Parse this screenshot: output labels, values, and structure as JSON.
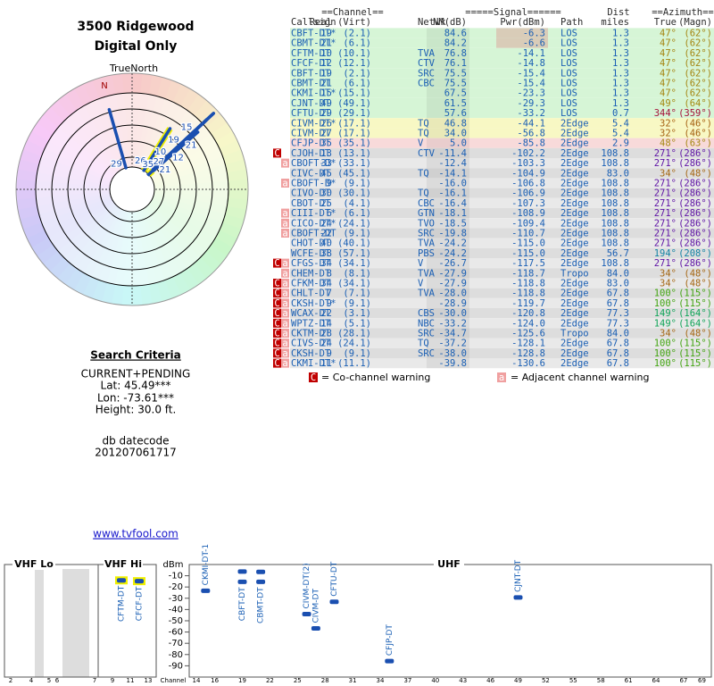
{
  "header": {
    "title": "3500 Ridgewood",
    "subtitle": "Digital Only"
  },
  "polar": {
    "north_label": "TrueNorth",
    "n": "N"
  },
  "criteria": {
    "title": "Search Criteria",
    "mode": "CURRENT+PENDING",
    "lat": "Lat: 45.49***",
    "lon": "Lon: -73.61***",
    "height": "Height: 30.0 ft.",
    "db_label": "db datecode",
    "db_value": "201207061717",
    "link": "www.tvfool.com"
  },
  "table": {
    "groups": {
      "channel": "==Channel==",
      "signal": "=====Signal======",
      "dist": "Dist",
      "azimuth": "==Azimuth=="
    },
    "columns": {
      "call": "Callsign",
      "real": "Real",
      "virt": "(Virt)",
      "net": "Netwk",
      "nm": "NM(dB)",
      "pwr": "Pwr(dBm)",
      "path": "Path",
      "miles": "miles",
      "az": "True",
      "magn": "(Magn)"
    },
    "rows": [
      {
        "call": "CBFT-DT*",
        "real": "19",
        "virt": "(2.1)",
        "nm": "84.6",
        "pwr": "-6.3",
        "path": "LOS",
        "miles": "1.3",
        "az": "47°",
        "magn": "(62°)"
      },
      {
        "call": "CBMT-DT*",
        "real": "21",
        "virt": "(6.1)",
        "nm": "84.2",
        "pwr": "-6.6",
        "path": "LOS",
        "miles": "1.3",
        "az": "47°",
        "magn": "(62°)"
      },
      {
        "call": "CFTM-DT",
        "real": "10",
        "virt": "(10.1)",
        "net": "TVA",
        "nm": "76.8",
        "pwr": "-14.1",
        "path": "LOS",
        "miles": "1.3",
        "az": "47°",
        "magn": "(62°)"
      },
      {
        "call": "CFCF-DT",
        "real": "12",
        "virt": "(12.1)",
        "net": "CTV",
        "nm": "76.1",
        "pwr": "-14.8",
        "path": "LOS",
        "miles": "1.3",
        "az": "47°",
        "magn": "(62°)"
      },
      {
        "call": "CBFT-DT",
        "real": "19",
        "virt": "(2.1)",
        "net": "SRC",
        "nm": "75.5",
        "pwr": "-15.4",
        "path": "LOS",
        "miles": "1.3",
        "az": "47°",
        "magn": "(62°)"
      },
      {
        "call": "CBMT-DT",
        "real": "21",
        "virt": "(6.1)",
        "net": "CBC",
        "nm": "75.5",
        "pwr": "-15.4",
        "path": "LOS",
        "miles": "1.3",
        "az": "47°",
        "magn": "(62°)"
      },
      {
        "call": "CKMI-DT*",
        "real": "15",
        "virt": "(15.1)",
        "nm": "67.5",
        "pwr": "-23.3",
        "path": "LOS",
        "miles": "1.3",
        "az": "47°",
        "magn": "(62°)"
      },
      {
        "call": "CJNT-DT",
        "real": "49",
        "virt": "(49.1)",
        "nm": "61.5",
        "pwr": "-29.3",
        "path": "LOS",
        "miles": "1.3",
        "az": "49°",
        "magn": "(64°)"
      },
      {
        "call": "CFTU-DT",
        "real": "29",
        "virt": "(29.1)",
        "nm": "57.6",
        "pwr": "-33.2",
        "path": "LOS",
        "miles": "0.7",
        "az": "344°",
        "magn": "(359°)"
      },
      {
        "call": "CIVM-DT*",
        "real": "26",
        "virt": "(17.1)",
        "net": "TQ",
        "nm": "46.8",
        "pwr": "-44.1",
        "path": "2Edge",
        "miles": "5.4",
        "az": "32°",
        "magn": "(46°)"
      },
      {
        "call": "CIVM-DT",
        "real": "27",
        "virt": "(17.1)",
        "net": "TQ",
        "nm": "34.0",
        "pwr": "-56.8",
        "path": "2Edge",
        "miles": "5.4",
        "az": "32°",
        "magn": "(46°)"
      },
      {
        "call": "CFJP-DT",
        "real": "35",
        "virt": "(35.1)",
        "net": "V",
        "nm": "5.0",
        "pwr": "-85.8",
        "path": "2Edge",
        "miles": "2.9",
        "az": "48°",
        "magn": "(63°)"
      },
      {
        "call": "CJOH-DT",
        "real": "13",
        "virt": "(13.1)",
        "net": "CTV",
        "nm": "-11.4",
        "pwr": "-102.2",
        "path": "2Edge",
        "miles": "108.8",
        "az": "271°",
        "magn": "(286°)",
        "flags": [
          "C"
        ]
      },
      {
        "call": "CBOFT-D*",
        "real": "33",
        "virt": "(33.1)",
        "nm": "-12.4",
        "pwr": "-103.3",
        "path": "2Edge",
        "miles": "108.8",
        "az": "271°",
        "magn": "(286°)",
        "flags": [
          "a"
        ]
      },
      {
        "call": "CIVC-DT",
        "real": "45",
        "virt": "(45.1)",
        "net": "TQ",
        "nm": "-14.1",
        "pwr": "-104.9",
        "path": "2Edge",
        "miles": "83.0",
        "az": "34°",
        "magn": "(48°)"
      },
      {
        "call": "CBOFT-D*",
        "real": "9",
        "virt": "(9.1)",
        "nm": "-16.0",
        "pwr": "-106.8",
        "path": "2Edge",
        "miles": "108.8",
        "az": "271°",
        "magn": "(286°)",
        "flags": [
          "a"
        ]
      },
      {
        "call": "CIVO-DT",
        "real": "30",
        "virt": "(30.1)",
        "net": "TQ",
        "nm": "-16.1",
        "pwr": "-106.9",
        "path": "2Edge",
        "miles": "108.8",
        "az": "271°",
        "magn": "(286°)"
      },
      {
        "call": "CBOT-DT",
        "real": "25",
        "virt": "(4.1)",
        "net": "CBC",
        "nm": "-16.4",
        "pwr": "-107.3",
        "path": "2Edge",
        "miles": "108.8",
        "az": "271°",
        "magn": "(286°)"
      },
      {
        "call": "CIII-DT*",
        "real": "6",
        "virt": "(6.1)",
        "net": "GTN",
        "nm": "-18.1",
        "pwr": "-108.9",
        "path": "2Edge",
        "miles": "108.8",
        "az": "271°",
        "magn": "(286°)",
        "flags": [
          "a"
        ]
      },
      {
        "call": "CICO-DT*",
        "real": "24",
        "virt": "(24.1)",
        "net": "TVO",
        "nm": "-18.5",
        "pwr": "-109.4",
        "path": "2Edge",
        "miles": "108.8",
        "az": "271°",
        "magn": "(286°)",
        "flags": [
          "a"
        ]
      },
      {
        "call": "CBOFT-DT",
        "real": "22",
        "virt": "(9.1)",
        "net": "SRC",
        "nm": "-19.8",
        "pwr": "-110.7",
        "path": "2Edge",
        "miles": "108.8",
        "az": "271°",
        "magn": "(286°)",
        "flags": [
          "a"
        ]
      },
      {
        "call": "CHOT-DT",
        "real": "40",
        "virt": "(40.1)",
        "net": "TVA",
        "nm": "-24.2",
        "pwr": "-115.0",
        "path": "2Edge",
        "miles": "108.8",
        "az": "271°",
        "magn": "(286°)"
      },
      {
        "call": "WCFE-DT",
        "real": "38",
        "virt": "(57.1)",
        "net": "PBS",
        "nm": "-24.2",
        "pwr": "-115.0",
        "path": "2Edge",
        "miles": "56.7",
        "az": "194°",
        "magn": "(208°)"
      },
      {
        "call": "CFGS-DT",
        "real": "34",
        "virt": "(34.1)",
        "net": "V",
        "nm": "-26.7",
        "pwr": "-117.5",
        "path": "2Edge",
        "miles": "108.8",
        "az": "271°",
        "magn": "(286°)",
        "flags": [
          "C",
          "a"
        ]
      },
      {
        "call": "CHEM-DT",
        "real": "8",
        "virt": "(8.1)",
        "net": "TVA",
        "nm": "-27.9",
        "pwr": "-118.7",
        "path": "Tropo",
        "miles": "84.0",
        "az": "34°",
        "magn": "(48°)",
        "flags": [
          "a"
        ]
      },
      {
        "call": "CFKM-DT",
        "real": "34",
        "virt": "(34.1)",
        "net": "V",
        "nm": "-27.9",
        "pwr": "-118.8",
        "path": "2Edge",
        "miles": "83.0",
        "az": "34°",
        "magn": "(48°)",
        "flags": [
          "C",
          "a"
        ]
      },
      {
        "call": "CHLT-DT",
        "real": "7",
        "virt": "(7.1)",
        "net": "TVA",
        "nm": "-28.0",
        "pwr": "-118.8",
        "path": "2Edge",
        "miles": "67.8",
        "az": "100°",
        "magn": "(115°)",
        "flags": [
          "a",
          "C"
        ]
      },
      {
        "call": "CKSH-DT*",
        "real": "9",
        "virt": "(9.1)",
        "nm": "-28.9",
        "pwr": "-119.7",
        "path": "2Edge",
        "miles": "67.8",
        "az": "100°",
        "magn": "(115°)",
        "flags": [
          "a",
          "C"
        ]
      },
      {
        "call": "WCAX-DT",
        "real": "22",
        "virt": "(3.1)",
        "net": "CBS",
        "nm": "-30.0",
        "pwr": "-120.8",
        "path": "2Edge",
        "miles": "77.3",
        "az": "149°",
        "magn": "(164°)",
        "flags": [
          "a",
          "C"
        ]
      },
      {
        "call": "WPTZ-DT",
        "real": "14",
        "virt": "(5.1)",
        "net": "NBC",
        "nm": "-33.2",
        "pwr": "-124.0",
        "path": "2Edge",
        "miles": "77.3",
        "az": "149°",
        "magn": "(164°)",
        "flags": [
          "a",
          "C"
        ]
      },
      {
        "call": "CKTM-DT",
        "real": "28",
        "virt": "(28.1)",
        "net": "SRC",
        "nm": "-34.7",
        "pwr": "-125.6",
        "path": "Tropo",
        "miles": "84.0",
        "az": "34°",
        "magn": "(48°)",
        "flags": [
          "a",
          "C"
        ]
      },
      {
        "call": "CIVS-DT",
        "real": "24",
        "virt": "(24.1)",
        "net": "TQ",
        "nm": "-37.2",
        "pwr": "-128.1",
        "path": "2Edge",
        "miles": "67.8",
        "az": "100°",
        "magn": "(115°)",
        "flags": [
          "a",
          "C"
        ]
      },
      {
        "call": "CKSH-DT",
        "real": "9",
        "virt": "(9.1)",
        "net": "SRC",
        "nm": "-38.0",
        "pwr": "-128.8",
        "path": "2Edge",
        "miles": "67.8",
        "az": "100°",
        "magn": "(115°)",
        "flags": [
          "a",
          "C"
        ]
      },
      {
        "call": "CKMI-DT*",
        "real": "11",
        "virt": "(11.1)",
        "nm": "-39.8",
        "pwr": "-130.6",
        "path": "2Edge",
        "miles": "67.8",
        "az": "100°",
        "magn": "(115°)",
        "flags": [
          "a",
          "C"
        ]
      }
    ]
  },
  "legend": {
    "co_icon": "C",
    "co_text": "= Co-channel warning",
    "adj_icon": "a",
    "adj_text": "= Adjacent channel warning"
  },
  "spectrum": {
    "bands": {
      "vhf_lo": "VHF Lo",
      "vhf_hi": "VHF Hi",
      "uhf": "UHF"
    },
    "y_label": "dBm",
    "x_label": "Channel",
    "ylim": [
      -4,
      -100
    ],
    "yticks": [
      -10,
      -20,
      -30,
      -40,
      -50,
      -60,
      -70,
      -80,
      -90
    ],
    "xticks": [
      2,
      4,
      5,
      6,
      7,
      9,
      11,
      13,
      14,
      16,
      19,
      22,
      25,
      28,
      31,
      34,
      37,
      40,
      43,
      46,
      49,
      52,
      55,
      58,
      61,
      64,
      67,
      69
    ],
    "stations": [
      {
        "name": "CFTM-DT",
        "channel": 10,
        "values": [
          -14.1
        ]
      },
      {
        "name": "CFCF-DT",
        "channel": 12,
        "values": [
          -14.8
        ]
      },
      {
        "name": "CKMI-DT-1",
        "channel": 15,
        "values": [
          -23.3
        ]
      },
      {
        "name": "CBFT-DT",
        "channel": 19,
        "values": [
          -6.3,
          -15.4
        ]
      },
      {
        "name": "CBMT-DT",
        "channel": 21,
        "values": [
          -6.6,
          -15.4
        ]
      },
      {
        "name": "CIVM-DT(2)",
        "channel": 26,
        "values": [
          -44.1
        ]
      },
      {
        "name": "CIVM-DT",
        "channel": 27,
        "values": [
          -56.8
        ]
      },
      {
        "name": "CFTU-DT",
        "channel": 29,
        "values": [
          -33.2
        ]
      },
      {
        "name": "CFJP-DT",
        "channel": 35,
        "values": [
          -85.8
        ]
      },
      {
        "name": "CJNT-DT",
        "channel": 49,
        "values": [
          -29.3
        ]
      }
    ]
  }
}
